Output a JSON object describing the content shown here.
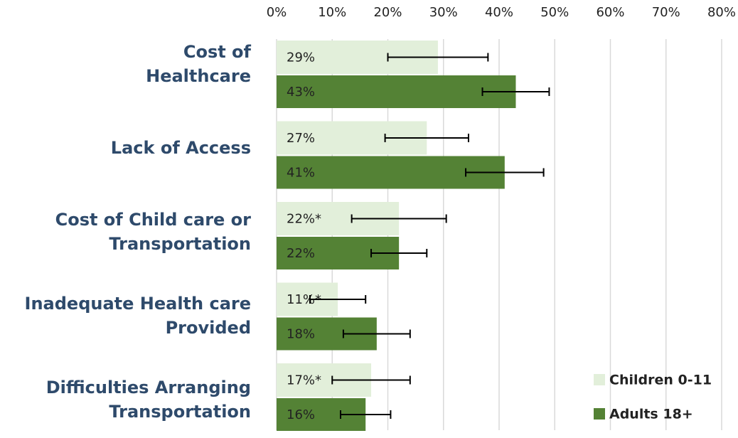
{
  "chart_data": {
    "type": "hbar",
    "categories": [
      "Cost of\nHealthcare",
      "Lack of Access",
      "Cost of Child care or\nTransportation",
      "Inadequate Health care\nProvided",
      "Difficulties Arranging\nTransportation"
    ],
    "series": [
      {
        "name": "Children 0-11",
        "color": "#e2efda",
        "values": [
          29,
          27,
          22,
          11,
          17
        ],
        "value_labels": [
          "29%",
          "27%",
          "22%*",
          "11%*",
          "17%*"
        ],
        "errors": [
          9,
          7.5,
          8.5,
          5,
          7
        ]
      },
      {
        "name": "Adults 18+",
        "color": "#548235",
        "values": [
          43,
          41,
          22,
          18,
          16
        ],
        "value_labels": [
          "43%",
          "41%",
          "22%",
          "18%",
          "16%"
        ],
        "errors": [
          6,
          7,
          5,
          6,
          4.5
        ]
      }
    ],
    "xlim": [
      0,
      80
    ],
    "xticks": [
      {
        "value": 0,
        "label": "0%"
      },
      {
        "value": 10,
        "label": "10%"
      },
      {
        "value": 20,
        "label": "20%"
      },
      {
        "value": 30,
        "label": "30%"
      },
      {
        "value": 40,
        "label": "40%"
      },
      {
        "value": 50,
        "label": "50%"
      },
      {
        "value": 60,
        "label": "60%"
      },
      {
        "value": 70,
        "label": "70%"
      },
      {
        "value": 80,
        "label": "80%"
      }
    ],
    "grid": true,
    "legend": "lower right"
  }
}
